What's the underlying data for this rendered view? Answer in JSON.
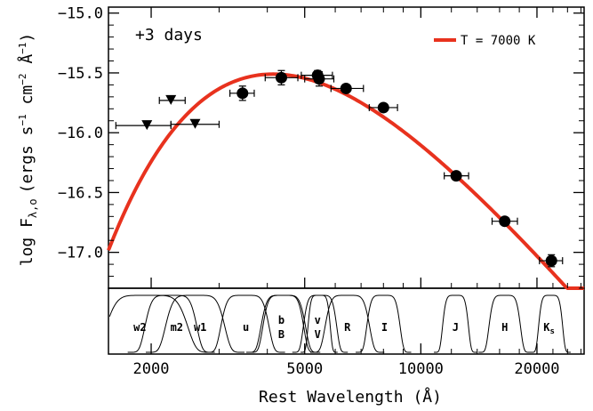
{
  "chart_data": {
    "type": "scatter",
    "annotation": "+3 days",
    "xlabel": "Rest Wavelength (Å)",
    "ylabel_prefix": "log F",
    "ylabel_sub": "λ,o",
    "ylabel_units": "(ergs s",
    "ylabel_exp1": "−1",
    "ylabel_mid": " cm",
    "ylabel_exp2": "−2",
    "ylabel_ang": " Å",
    "ylabel_exp3": "−1",
    "ylabel_close": ")",
    "x_scale": "log",
    "xlim": [
      1550,
      26500
    ],
    "ylim": [
      -17.3,
      -14.95
    ],
    "x_ticks": [
      {
        "value": 2000,
        "label": "2000"
      },
      {
        "value": 5000,
        "label": "5000"
      },
      {
        "value": 10000,
        "label": "10000"
      },
      {
        "value": 20000,
        "label": "20000"
      }
    ],
    "y_ticks": [
      {
        "value": -15.0,
        "label": "−15.0"
      },
      {
        "value": -15.5,
        "label": "−15.5"
      },
      {
        "value": -16.0,
        "label": "−16.0"
      },
      {
        "value": -16.5,
        "label": "−16.5"
      },
      {
        "value": -17.0,
        "label": "−17.0"
      }
    ],
    "legend": {
      "position": "top-right",
      "label": "T = 7000 K",
      "color": "#e8321e"
    },
    "model_curve": {
      "temperature_K": 7000,
      "peak_wavelength": 4140,
      "peak_value": -15.51,
      "color": "#e8321e"
    },
    "detections": [
      {
        "x": 3450,
        "y": -15.67,
        "xerr": [
          3200,
          3700
        ],
        "yerr": 0.06
      },
      {
        "x": 4350,
        "y": -15.54,
        "xerr": [
          3950,
          4800
        ],
        "yerr": 0.06
      },
      {
        "x": 5400,
        "y": -15.52,
        "xerr": [
          4900,
          5900
        ],
        "yerr": 0.04
      },
      {
        "x": 5450,
        "y": -15.55,
        "xerr": [
          5000,
          5950
        ],
        "yerr": 0.06
      },
      {
        "x": 6400,
        "y": -15.63,
        "xerr": [
          5850,
          7100
        ],
        "yerr": 0.03
      },
      {
        "x": 8000,
        "y": -15.79,
        "xerr": [
          7350,
          8700
        ],
        "yerr": 0.03
      },
      {
        "x": 12350,
        "y": -16.36,
        "xerr": [
          11500,
          13300
        ],
        "yerr": 0.03
      },
      {
        "x": 16500,
        "y": -16.74,
        "xerr": [
          15300,
          17800
        ],
        "yerr": 0.03
      },
      {
        "x": 21800,
        "y": -17.07,
        "xerr": [
          20300,
          23300
        ],
        "yerr": 0.05
      }
    ],
    "upper_limits": [
      {
        "x": 1950,
        "y": -15.94,
        "xerr": [
          1620,
          2250
        ]
      },
      {
        "x": 2250,
        "y": -15.73,
        "xerr": [
          2100,
          2450
        ]
      },
      {
        "x": 2600,
        "y": -15.93,
        "xerr": [
          2250,
          3000
        ]
      }
    ],
    "filters": [
      {
        "name": "w2",
        "label": "w2",
        "center": 1950,
        "width": 0.22,
        "label_x": 1870,
        "label_row": 1
      },
      {
        "name": "m2",
        "label": "m2",
        "center": 2250,
        "width": 0.14,
        "label_x": 2330,
        "label_row": 1
      },
      {
        "name": "w1",
        "label": "w1",
        "center": 2600,
        "width": 0.16,
        "label_x": 2680,
        "label_row": 1
      },
      {
        "name": "u",
        "label": "u",
        "center": 3500,
        "width": 0.13,
        "label_x": 3520,
        "label_row": 1
      },
      {
        "name": "b",
        "label": "b",
        "center": 4400,
        "width": 0.11,
        "label_x": 4350,
        "label_row": 0
      },
      {
        "name": "B",
        "label": "B",
        "center": 4400,
        "width": 0.12,
        "label_x": 4350,
        "label_row": 2
      },
      {
        "name": "v",
        "label": "v",
        "center": 5450,
        "width": 0.06,
        "label_x": 5400,
        "label_row": 0
      },
      {
        "name": "V",
        "label": "V",
        "center": 5480,
        "width": 0.09,
        "label_x": 5400,
        "label_row": 2
      },
      {
        "name": "R",
        "label": "R",
        "center": 6450,
        "width": 0.12,
        "label_x": 6450,
        "label_row": 1
      },
      {
        "name": "I",
        "label": "I",
        "center": 8000,
        "width": 0.09,
        "label_x": 8050,
        "label_row": 1
      },
      {
        "name": "J",
        "label": "J",
        "center": 12300,
        "width": 0.07,
        "label_x": 12300,
        "label_row": 1
      },
      {
        "name": "H",
        "label": "H",
        "center": 16500,
        "width": 0.085,
        "label_x": 16500,
        "label_row": 1
      },
      {
        "name": "Ks",
        "label": "K",
        "label_sub": "s",
        "center": 21700,
        "width": 0.065,
        "label_x": 21500,
        "label_row": 1
      }
    ]
  }
}
